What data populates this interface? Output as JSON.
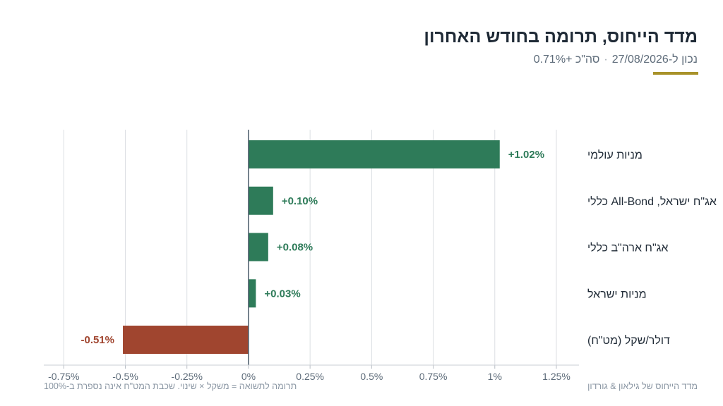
{
  "header": {
    "title": "מדד הייחוס, תרומה בחודש האחרון",
    "date_text": "נכון ל-27/08/2026",
    "total_text": "סה\"כ +0.71%",
    "accent_color": "#a8922a"
  },
  "chart_data": {
    "type": "bar",
    "orientation": "horizontal",
    "categories": [
      "מניות עולמי",
      "אג\"ח ישראל, All-Bond כללי",
      "אג\"ח ארה\"ב כללי",
      "מניות ישראל",
      "דולר/שקל (מט\"ח)"
    ],
    "values": [
      1.02,
      0.1,
      0.08,
      0.03,
      -0.51
    ],
    "value_labels": [
      "+1.02%",
      "+0.10%",
      "+0.08%",
      "+0.03%",
      "-0.51%"
    ],
    "xlim": [
      -0.75,
      1.25
    ],
    "x_ticks": [
      -0.75,
      -0.5,
      -0.25,
      0,
      0.25,
      0.5,
      0.75,
      1,
      1.25
    ],
    "x_tick_labels": [
      "-0.75%",
      "-0.5%",
      "-0.25%",
      "0%",
      "0.25%",
      "0.5%",
      "0.75%",
      "1%",
      "1.25%"
    ],
    "grid": true,
    "colors": {
      "positive": "#2e7b59",
      "negative": "#a0452f"
    }
  },
  "footer": {
    "note": "תרומה לתשואה = משקל × שינוי. שכבת המט\"ח אינה נספרת ב-100%",
    "source": "מדד הייחוס של גילאון & גורדון"
  }
}
